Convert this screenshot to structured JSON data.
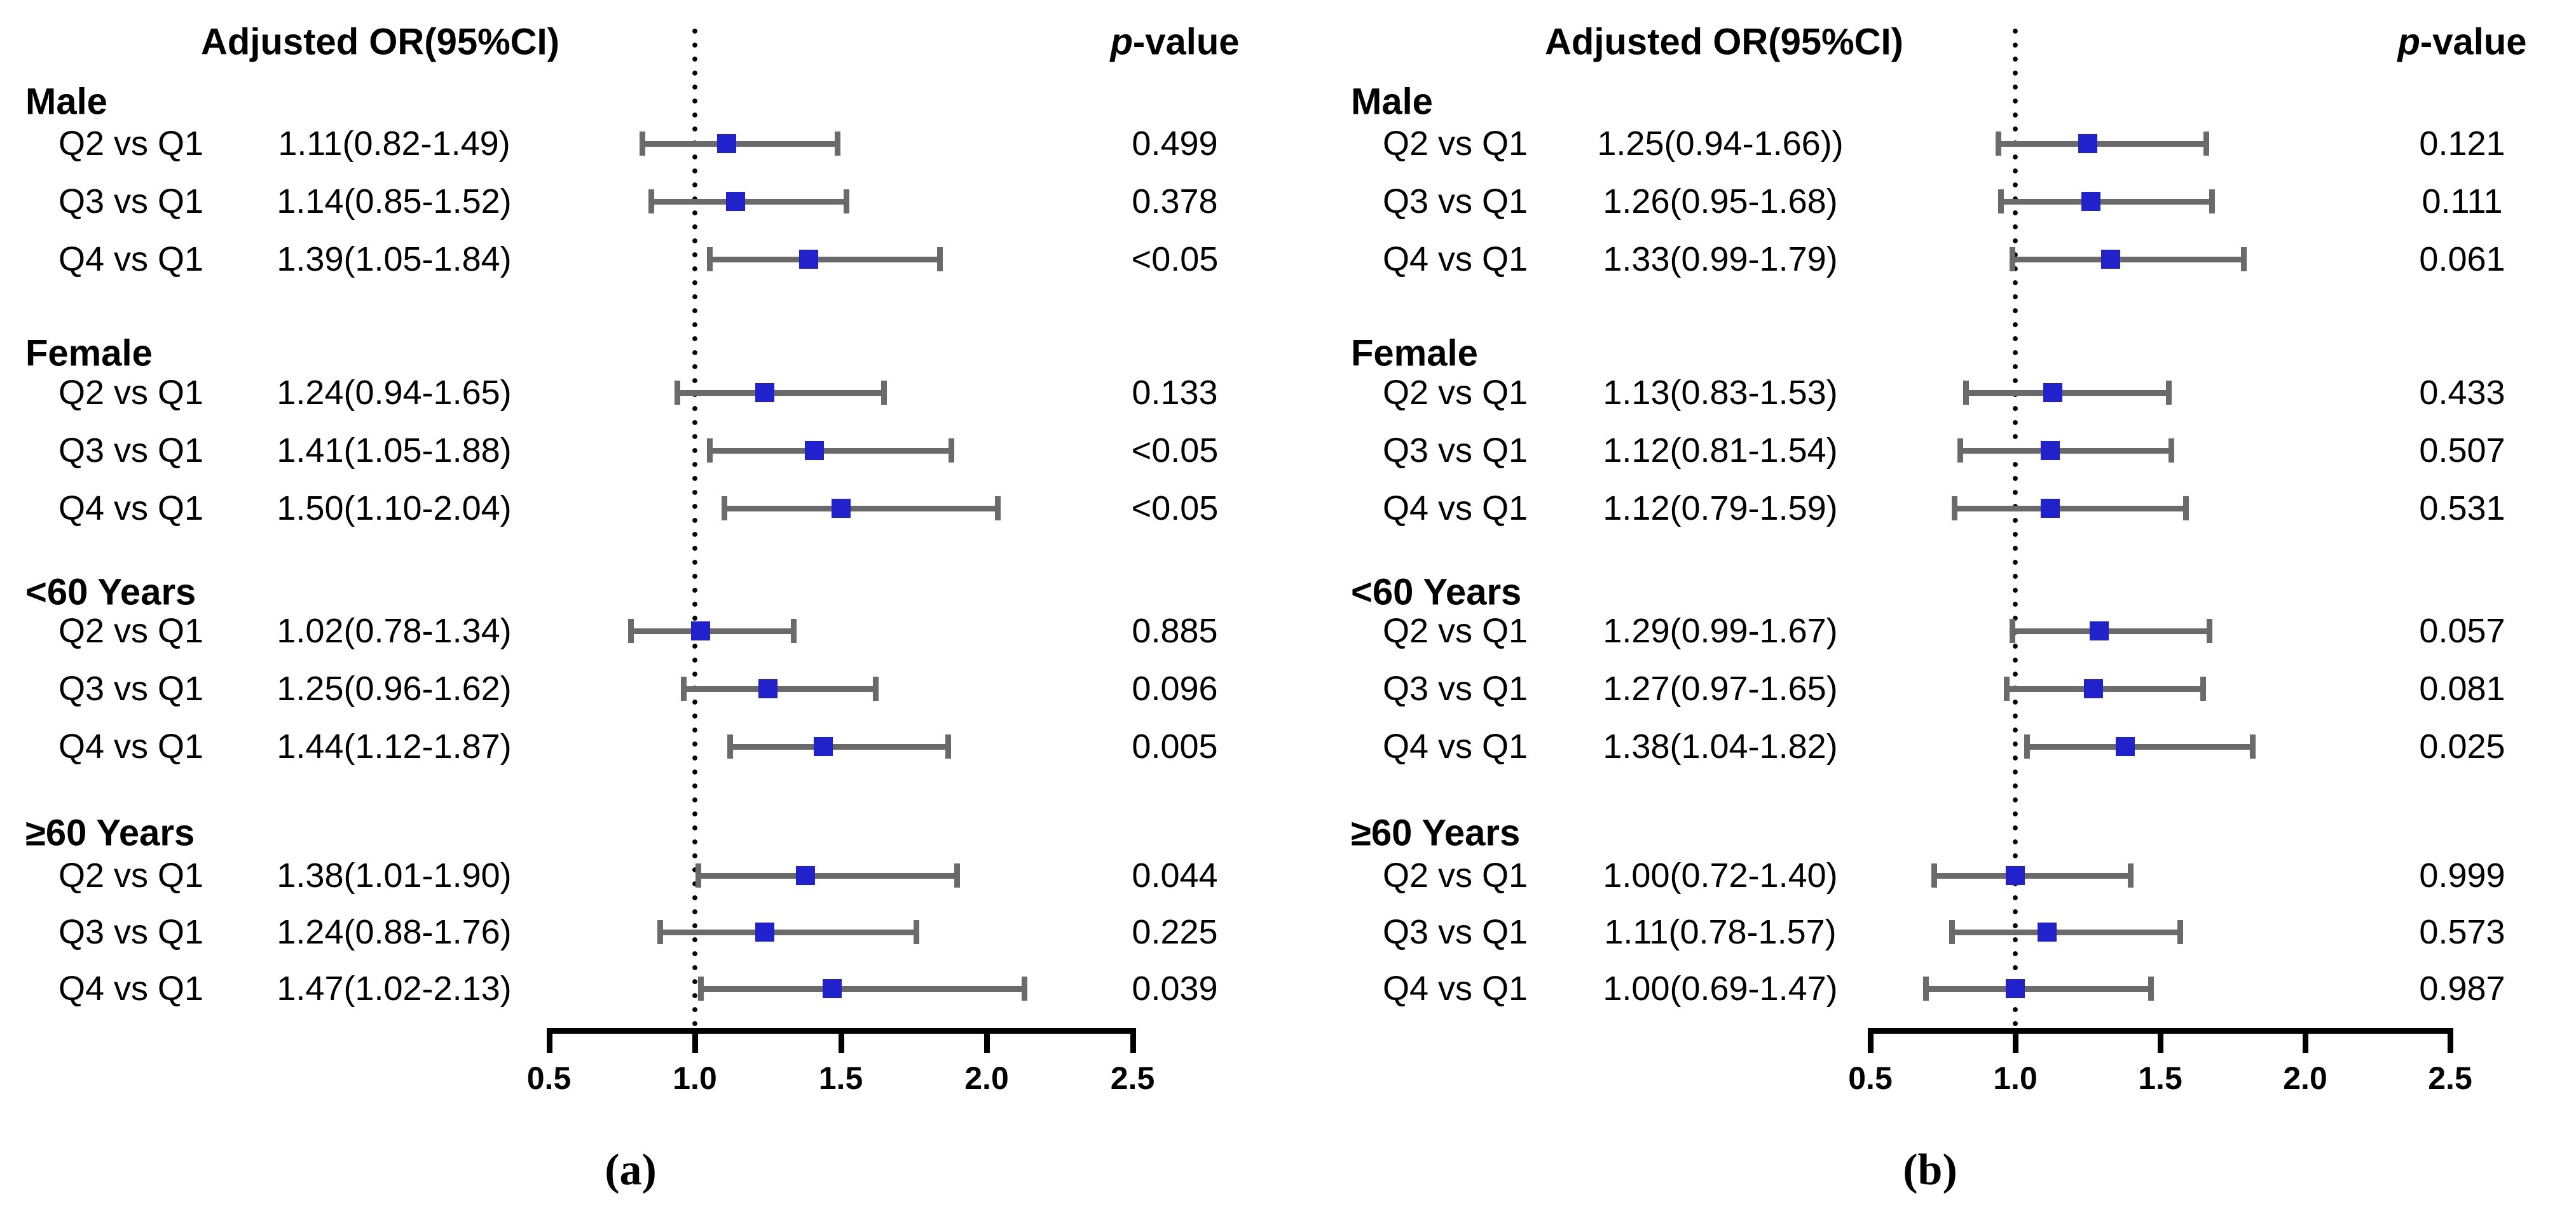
{
  "colors": {
    "marker_blue": "#2222CC",
    "error_bar_gray": "#6a6a6a",
    "axis_black": "#000000",
    "text_black": "#000000",
    "background": "#ffffff"
  },
  "chart_data": [
    {
      "type": "forest",
      "panel_label": "(a)",
      "col_headers": {
        "or": "Adjusted OR(95%CI)",
        "p": "p-value"
      },
      "x_axis": {
        "ticks": [
          0.5,
          1.0,
          1.5,
          2.0,
          2.5
        ],
        "tick_labels": [
          "0.5",
          "1.0",
          "1.5",
          "2.0",
          "2.5"
        ],
        "range": [
          0.5,
          2.5
        ],
        "reference_line": 1.0,
        "grid": false
      },
      "groups": [
        {
          "label": "Male",
          "rows": [
            {
              "label": "Q2 vs Q1",
              "or_text": "1.11(0.82-1.49)",
              "or": 1.11,
              "ci_low": 0.82,
              "ci_high": 1.49,
              "p_value": "0.499"
            },
            {
              "label": "Q3 vs Q1",
              "or_text": "1.14(0.85-1.52)",
              "or": 1.14,
              "ci_low": 0.85,
              "ci_high": 1.52,
              "p_value": "0.378"
            },
            {
              "label": "Q4 vs Q1",
              "or_text": "1.39(1.05-1.84)",
              "or": 1.39,
              "ci_low": 1.05,
              "ci_high": 1.84,
              "p_value": "<0.05"
            }
          ]
        },
        {
          "label": "Female",
          "rows": [
            {
              "label": "Q2 vs Q1",
              "or_text": "1.24(0.94-1.65)",
              "or": 1.24,
              "ci_low": 0.94,
              "ci_high": 1.65,
              "p_value": "0.133"
            },
            {
              "label": "Q3 vs Q1",
              "or_text": "1.41(1.05-1.88)",
              "or": 1.41,
              "ci_low": 1.05,
              "ci_high": 1.88,
              "p_value": "<0.05"
            },
            {
              "label": "Q4 vs Q1",
              "or_text": "1.50(1.10-2.04)",
              "or": 1.5,
              "ci_low": 1.1,
              "ci_high": 2.04,
              "p_value": "<0.05"
            }
          ]
        },
        {
          "label": "<60 Years",
          "rows": [
            {
              "label": "Q2 vs Q1",
              "or_text": "1.02(0.78-1.34)",
              "or": 1.02,
              "ci_low": 0.78,
              "ci_high": 1.34,
              "p_value": "0.885"
            },
            {
              "label": "Q3 vs Q1",
              "or_text": "1.25(0.96-1.62)",
              "or": 1.25,
              "ci_low": 0.96,
              "ci_high": 1.62,
              "p_value": "0.096"
            },
            {
              "label": "Q4 vs Q1",
              "or_text": "1.44(1.12-1.87)",
              "or": 1.44,
              "ci_low": 1.12,
              "ci_high": 1.87,
              "p_value": "0.005"
            }
          ]
        },
        {
          "label": "≥60 Years",
          "rows": [
            {
              "label": "Q2 vs Q1",
              "or_text": "1.38(1.01-1.90)",
              "or": 1.38,
              "ci_low": 1.01,
              "ci_high": 1.9,
              "p_value": "0.044"
            },
            {
              "label": "Q3 vs Q1",
              "or_text": "1.24(0.88-1.76)",
              "or": 1.24,
              "ci_low": 0.88,
              "ci_high": 1.76,
              "p_value": "0.225"
            },
            {
              "label": "Q4 vs Q1",
              "or_text": "1.47(1.02-2.13)",
              "or": 1.47,
              "ci_low": 1.02,
              "ci_high": 2.13,
              "p_value": "0.039"
            }
          ]
        }
      ]
    },
    {
      "type": "forest",
      "panel_label": "(b)",
      "col_headers": {
        "or": "Adjusted OR(95%CI)",
        "p": "p-value"
      },
      "x_axis": {
        "ticks": [
          0.5,
          1.0,
          1.5,
          2.0,
          2.5
        ],
        "tick_labels": [
          "0.5",
          "1.0",
          "1.5",
          "2.0",
          "2.5"
        ],
        "range": [
          0.5,
          2.5
        ],
        "reference_line": 1.0,
        "grid": false
      },
      "groups": [
        {
          "label": "Male",
          "rows": [
            {
              "label": "Q2 vs Q1",
              "or_text": "1.25(0.94-1.66))",
              "or": 1.25,
              "ci_low": 0.94,
              "ci_high": 1.66,
              "p_value": "0.121"
            },
            {
              "label": "Q3 vs Q1",
              "or_text": "1.26(0.95-1.68)",
              "or": 1.26,
              "ci_low": 0.95,
              "ci_high": 1.68,
              "p_value": "0.111"
            },
            {
              "label": "Q4 vs Q1",
              "or_text": "1.33(0.99-1.79)",
              "or": 1.33,
              "ci_low": 0.99,
              "ci_high": 1.79,
              "p_value": "0.061"
            }
          ]
        },
        {
          "label": "Female",
          "rows": [
            {
              "label": "Q2 vs Q1",
              "or_text": "1.13(0.83-1.53)",
              "or": 1.13,
              "ci_low": 0.83,
              "ci_high": 1.53,
              "p_value": "0.433"
            },
            {
              "label": "Q3 vs Q1",
              "or_text": "1.12(0.81-1.54)",
              "or": 1.12,
              "ci_low": 0.81,
              "ci_high": 1.54,
              "p_value": "0.507"
            },
            {
              "label": "Q4 vs Q1",
              "or_text": "1.12(0.79-1.59)",
              "or": 1.12,
              "ci_low": 0.79,
              "ci_high": 1.59,
              "p_value": "0.531"
            }
          ]
        },
        {
          "label": "<60 Years",
          "rows": [
            {
              "label": "Q2 vs Q1",
              "or_text": "1.29(0.99-1.67)",
              "or": 1.29,
              "ci_low": 0.99,
              "ci_high": 1.67,
              "p_value": "0.057"
            },
            {
              "label": "Q3 vs Q1",
              "or_text": "1.27(0.97-1.65)",
              "or": 1.27,
              "ci_low": 0.97,
              "ci_high": 1.65,
              "p_value": "0.081"
            },
            {
              "label": "Q4 vs Q1",
              "or_text": "1.38(1.04-1.82)",
              "or": 1.38,
              "ci_low": 1.04,
              "ci_high": 1.82,
              "p_value": "0.025"
            }
          ]
        },
        {
          "label": "≥60 Years",
          "rows": [
            {
              "label": "Q2 vs Q1",
              "or_text": "1.00(0.72-1.40)",
              "or": 1.0,
              "ci_low": 0.72,
              "ci_high": 1.4,
              "p_value": "0.999"
            },
            {
              "label": "Q3 vs Q1",
              "or_text": "1.11(0.78-1.57)",
              "or": 1.11,
              "ci_low": 0.78,
              "ci_high": 1.57,
              "p_value": "0.573"
            },
            {
              "label": "Q4 vs Q1",
              "or_text": "1.00(0.69-1.47)",
              "or": 1.0,
              "ci_low": 0.69,
              "ci_high": 1.47,
              "p_value": "0.987"
            }
          ]
        }
      ]
    }
  ]
}
